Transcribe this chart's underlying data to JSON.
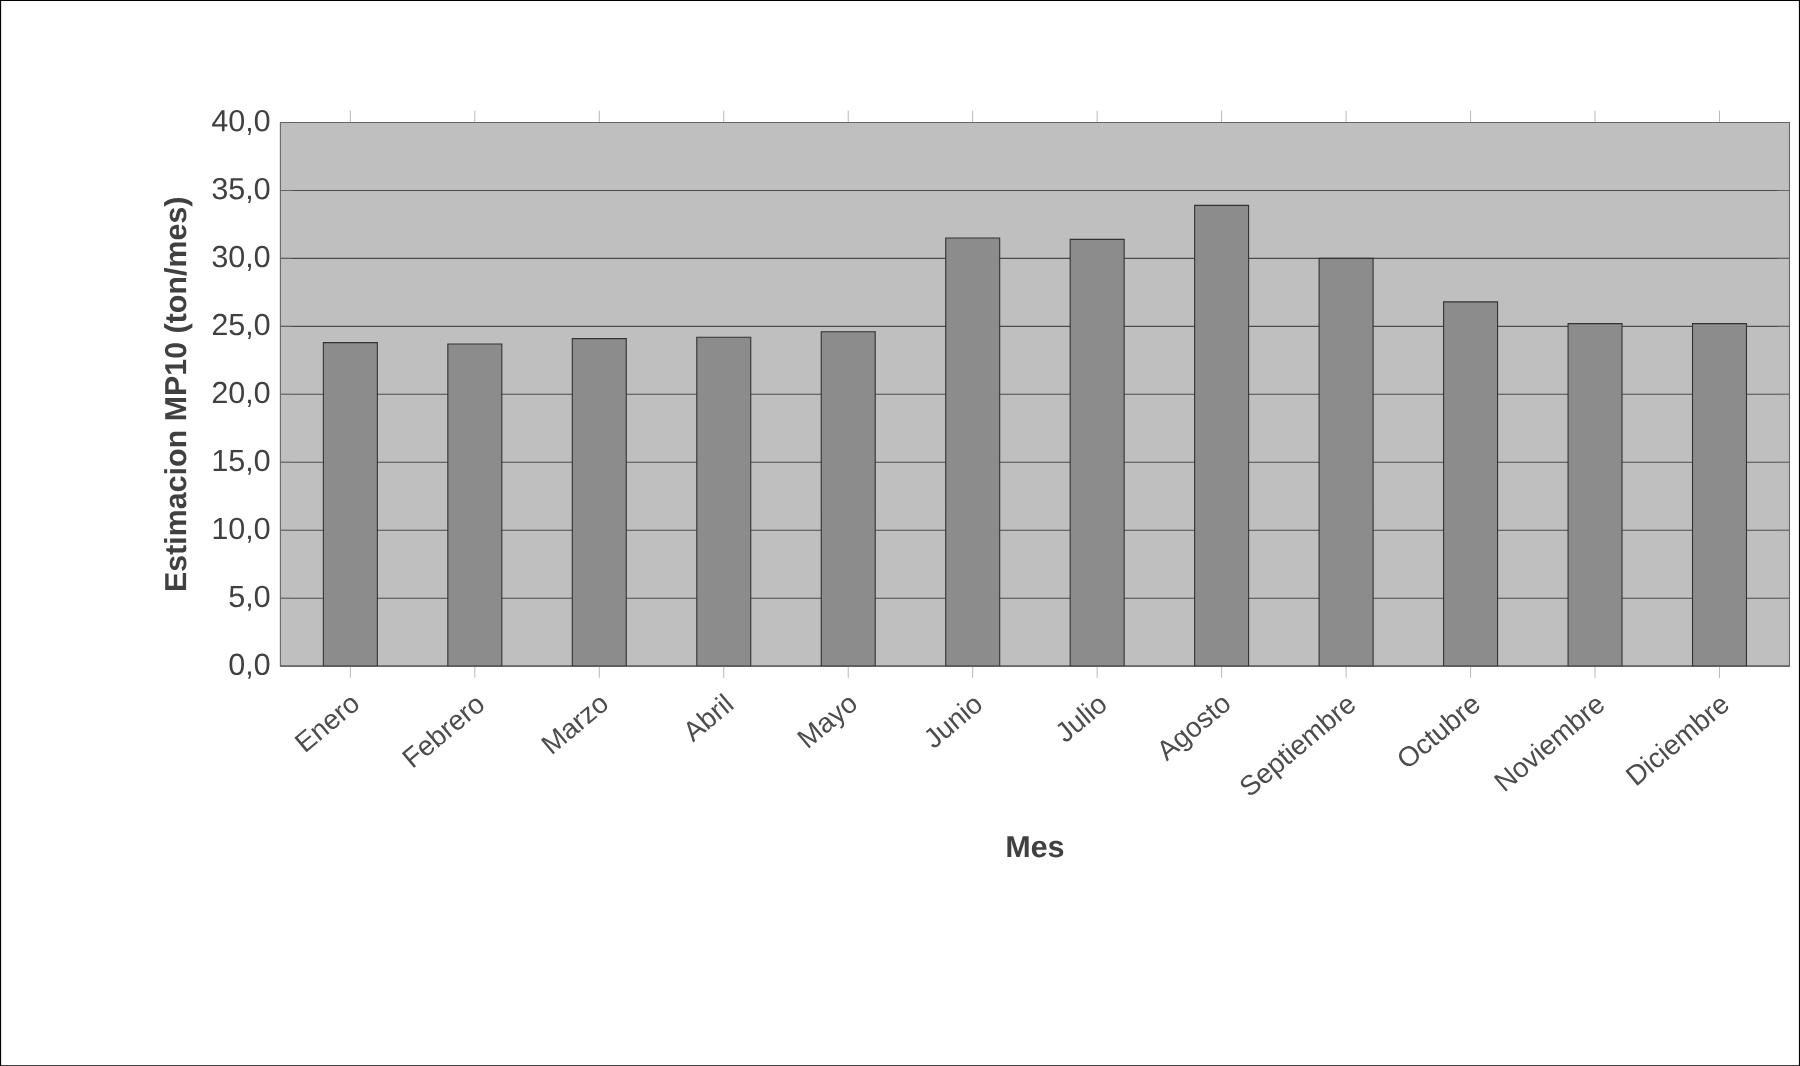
{
  "chart_data": {
    "type": "bar",
    "xlabel": "Mes",
    "ylabel": "Estimacion MP10 (ton/mes)",
    "categories": [
      "Enero",
      "Febrero",
      "Marzo",
      "Abril",
      "Mayo",
      "Junio",
      "Julio",
      "Agosto",
      "Septiembre",
      "Octubre",
      "Noviembre",
      "Diciembre"
    ],
    "values": [
      23.8,
      23.7,
      24.1,
      24.2,
      24.6,
      31.5,
      31.4,
      33.9,
      30.0,
      26.8,
      25.2,
      25.2
    ],
    "color": "#8c8c8c",
    "ylim": [
      0,
      40
    ],
    "yticks": [
      {
        "value": 0,
        "label": "0,0"
      },
      {
        "value": 5,
        "label": "5,0"
      },
      {
        "value": 10,
        "label": "10,0"
      },
      {
        "value": 15,
        "label": "15,0"
      },
      {
        "value": 20,
        "label": "20,0"
      },
      {
        "value": 25,
        "label": "25,0"
      },
      {
        "value": 30,
        "label": "30,0"
      },
      {
        "value": 35,
        "label": "35,0"
      },
      {
        "value": 40,
        "label": "40,0"
      }
    ],
    "grid": "y"
  }
}
